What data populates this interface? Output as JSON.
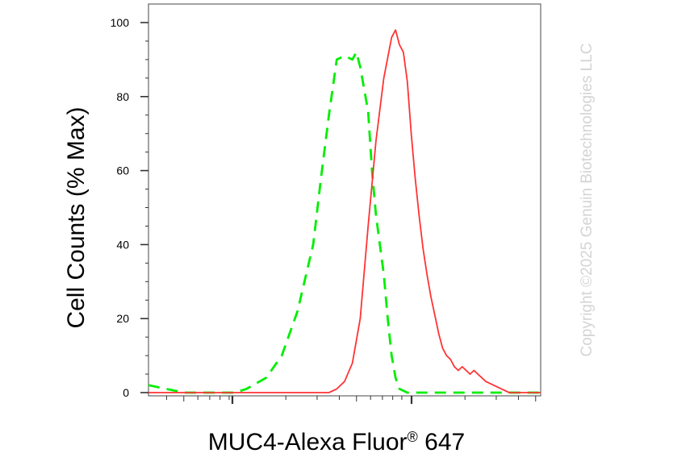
{
  "chart_data": {
    "type": "line",
    "xlabel": "MUC4-Alexa Fluor",
    "xlabel_sup": "®",
    "xlabel_suffix": " 647",
    "ylabel": "Cell Counts (% Max)",
    "x_scale": "log",
    "xlim": [
      0,
      100
    ],
    "ylim": [
      0,
      100
    ],
    "y_ticks": [
      "0",
      "20",
      "40",
      "60",
      "80",
      "100"
    ],
    "grid": false,
    "series": [
      {
        "style": "dashed",
        "color": "#00ee00",
        "x": [
          0,
          9,
          16,
          22,
          25,
          30,
          34,
          38,
          42,
          44,
          46,
          48,
          50,
          52,
          53,
          54,
          56,
          57,
          58,
          60,
          61,
          62,
          63,
          64,
          66,
          68,
          70,
          72,
          74,
          76,
          78,
          80,
          82,
          84,
          86,
          88,
          90,
          92,
          94,
          96,
          98,
          100
        ],
        "y": [
          2,
          0,
          0,
          0,
          1,
          4,
          10,
          22,
          40,
          58,
          75,
          90,
          91,
          90,
          92,
          88,
          76,
          60,
          48,
          32,
          20,
          10,
          4,
          1,
          0,
          0,
          0,
          0,
          0,
          0,
          0,
          0,
          0,
          0,
          0,
          0,
          0,
          0,
          0,
          0,
          0,
          0
        ]
      },
      {
        "style": "solid",
        "color": "#ff3333",
        "x": [
          0,
          30,
          44,
          46,
          48,
          50,
          52,
          54,
          56,
          58,
          60,
          62,
          63,
          64,
          65,
          66,
          67,
          68,
          69,
          70,
          71,
          72,
          73,
          74,
          75,
          76,
          77,
          78,
          79,
          80,
          81,
          82,
          83,
          84,
          85,
          86,
          88,
          90,
          92,
          94,
          96,
          98,
          100
        ],
        "y": [
          0,
          0,
          0,
          0,
          1,
          3,
          8,
          20,
          45,
          68,
          85,
          96,
          98,
          94,
          92,
          84,
          70,
          58,
          48,
          39,
          32,
          26,
          21,
          16,
          12,
          10,
          9,
          7,
          6,
          7,
          6,
          5,
          6,
          5,
          4,
          3,
          2,
          1,
          0,
          0,
          0,
          0,
          0
        ]
      }
    ],
    "watermark": "Copyright ©2025 Genuin Biotechnologies LLC"
  }
}
